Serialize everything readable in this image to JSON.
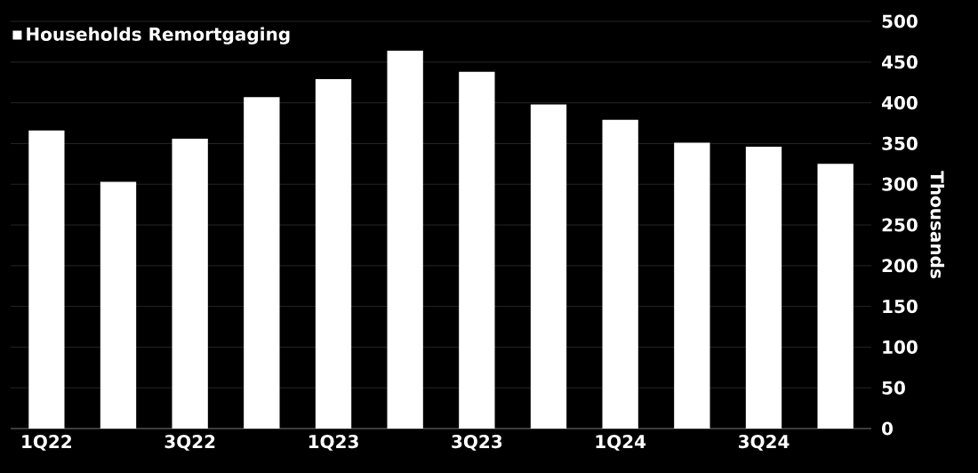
{
  "chart_data": {
    "type": "bar",
    "categories": [
      "1Q22",
      null,
      "3Q22",
      null,
      "1Q23",
      null,
      "3Q23",
      null,
      "1Q24",
      null,
      "3Q24",
      null
    ],
    "series": [
      {
        "name": "Households Remortgaging",
        "color": "#ffffff",
        "values": [
          366,
          303,
          356,
          407,
          429,
          464,
          438,
          398,
          379,
          351,
          346,
          325
        ]
      }
    ],
    "ylabel": "Thousands",
    "ylim": [
      0,
      500
    ],
    "yticks": [
      0,
      50,
      100,
      150,
      200,
      250,
      300,
      350,
      400,
      450,
      500
    ],
    "grid": "y",
    "legend": "top left"
  }
}
